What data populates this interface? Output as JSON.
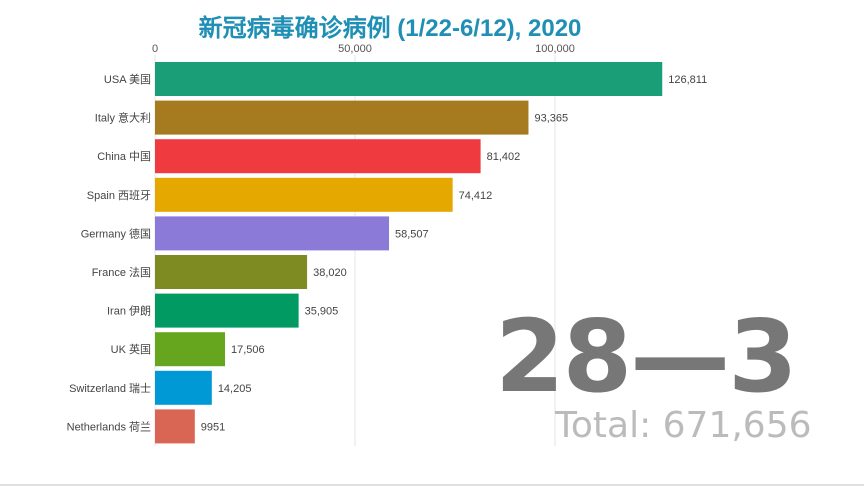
{
  "chart_data": {
    "type": "bar",
    "orientation": "horizontal",
    "title": "新冠病毒确诊病例 (1/22-6/12), 2020",
    "categories": [
      "USA 美国",
      "Italy 意大利",
      "China 中国",
      "Spain 西班牙",
      "Germany 德国",
      "France 法国",
      "Iran 伊朗",
      "UK 英国",
      "Switzerland 瑞士",
      "Netherlands 荷兰"
    ],
    "values": [
      126811,
      93365,
      81402,
      74412,
      58507,
      38020,
      35905,
      17506,
      14205,
      9951
    ],
    "value_labels": [
      "126,811",
      "93,365",
      "81,402",
      "74,412",
      "58,507",
      "38,020",
      "35,905",
      "17,506",
      "14,205",
      "9951"
    ],
    "colors": [
      "#1a9e77",
      "#a67a1e",
      "#ef3b3f",
      "#e5a800",
      "#8c7ad9",
      "#7e8b23",
      "#009a62",
      "#66a61e",
      "#0099d6",
      "#d96555"
    ],
    "x_ticks": [
      0,
      50000,
      100000
    ],
    "x_tick_labels": [
      "0",
      "50,000",
      "100,000"
    ],
    "xaxis_position": "top",
    "grid": true,
    "date_label": "28—3",
    "total_label": "Total: 671,656"
  }
}
